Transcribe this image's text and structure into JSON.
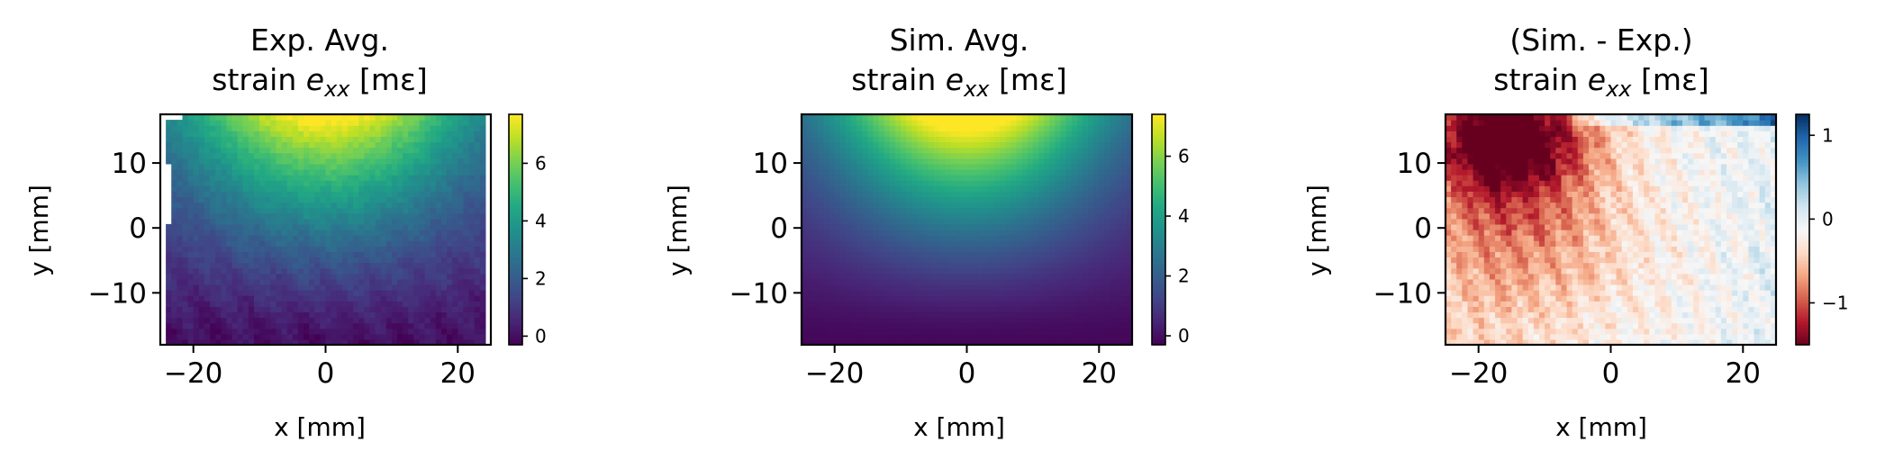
{
  "chart_data": [
    {
      "type": "heatmap",
      "title_line1": "Exp. Avg.",
      "title_line2_prefix": "strain ",
      "title_symbol": "e",
      "title_subscript": "xx",
      "title_unit": " [mε]",
      "xlabel": "x [mm]",
      "ylabel": "y [mm]",
      "xlim": [
        -25,
        25
      ],
      "ylim": [
        -18,
        17.5
      ],
      "xticks": [
        -20,
        0,
        20
      ],
      "xtick_labels": [
        "−20",
        "0",
        "20"
      ],
      "yticks": [
        -10,
        0,
        10
      ],
      "ytick_labels": [
        "−10",
        "0",
        "10"
      ],
      "colormap": "viridis",
      "clim": [
        -0.3,
        7.7
      ],
      "cbar_ticks": [
        0,
        2,
        4,
        6
      ],
      "cbar_tick_labels": [
        "0",
        "2",
        "4",
        "6"
      ],
      "field": {
        "peak_x": 0,
        "peak_y": 15,
        "peak_value": 7.5,
        "min_value": 0,
        "profile": "bell-shaped along x, rising with y"
      }
    },
    {
      "type": "heatmap",
      "title_line1": "Sim. Avg.",
      "title_line2_prefix": "strain ",
      "title_symbol": "e",
      "title_subscript": "xx",
      "title_unit": " [mε]",
      "xlabel": "x [mm]",
      "ylabel": "y [mm]",
      "xlim": [
        -25,
        25
      ],
      "ylim": [
        -18,
        17.5
      ],
      "xticks": [
        -20,
        0,
        20
      ],
      "xtick_labels": [
        "−20",
        "0",
        "20"
      ],
      "yticks": [
        -10,
        0,
        10
      ],
      "ytick_labels": [
        "−10",
        "0",
        "10"
      ],
      "colormap": "viridis",
      "clim": [
        -0.3,
        7.4
      ],
      "cbar_ticks": [
        0,
        2,
        4,
        6
      ],
      "cbar_tick_labels": [
        "0",
        "2",
        "4",
        "6"
      ],
      "field": {
        "peak_x": 0,
        "peak_y": 17.5,
        "peak_value": 7.3,
        "min_value": -0.2,
        "profile": "smooth bell-shaped along x, rising with y"
      }
    },
    {
      "type": "heatmap",
      "title_line1": "(Sim. - Exp.)",
      "title_line2_prefix": "strain ",
      "title_symbol": "e",
      "title_subscript": "xx",
      "title_unit": " [mε]",
      "xlabel": "x [mm]",
      "ylabel": "y [mm]",
      "xlim": [
        -25,
        25
      ],
      "ylim": [
        -18,
        17.5
      ],
      "xticks": [
        -20,
        0,
        20
      ],
      "xtick_labels": [
        "−20",
        "0",
        "20"
      ],
      "yticks": [
        -10,
        0,
        10
      ],
      "ytick_labels": [
        "−10",
        "0",
        "10"
      ],
      "colormap": "RdBu",
      "clim": [
        -1.5,
        1.25
      ],
      "cbar_ticks": [
        -1,
        0,
        1
      ],
      "cbar_tick_labels": [
        "−1",
        "0",
        "1"
      ],
      "field": {
        "min_x": -15,
        "min_y": 14,
        "min_value": -1.4,
        "max_value": 1.1,
        "profile": "strong negative upper-left, near zero right and bottom, positive thin band top-right"
      }
    }
  ]
}
